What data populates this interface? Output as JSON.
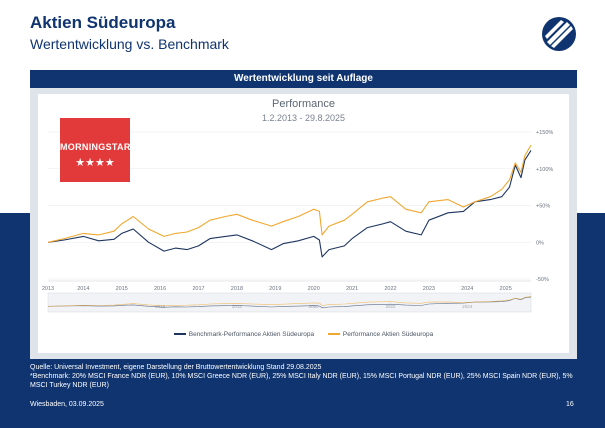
{
  "slide": {
    "title": "Aktien Südeuropa",
    "subtitle": "Wertentwicklung vs. Benchmark",
    "panel_title": "Wertentwicklung seit Auflage",
    "footnote_source": "Quelle: Universal Investment, eigene Darstellung der Bruttowertentwicklung Stand 29.08.2025",
    "footnote_benchmark": "*Benchmark: 20% MSCI France NDR (EUR), 10% MSCI Greece NDR (EUR), 25% MSCI Italy NDR (EUR), 15% MSCI Portugal NDR (EUR), 25% MSCI Spain NDR (EUR), 5% MSCI Turkey NDR (EUR)",
    "footer_place_date": "Wiesbaden, 03.09.2025",
    "page_number": "16",
    "logo_icon": "company-logo-icon",
    "colors": {
      "navy": "#0f3470",
      "fund": "#f0a830",
      "benchmark": "#1e3560",
      "morningstar_red": "#e23a3a"
    }
  },
  "morningstar": {
    "text": "MORNINGSTAR",
    "stars": "★★★★"
  },
  "chart_data": {
    "type": "line",
    "title": "Performance",
    "date_range": "1.2.2013 - 29.8.2025",
    "x_ticks": [
      "2013",
      "2014",
      "2015",
      "2016",
      "2017",
      "2018",
      "2019",
      "2020",
      "2021",
      "2022",
      "2023",
      "2024",
      "2025"
    ],
    "navigator_ticks": [
      "2016",
      "2018",
      "2020",
      "2022",
      "2024"
    ],
    "y_ticks": [
      "+150%",
      "+100%",
      "+50%",
      "0%",
      "-50%"
    ],
    "y_tick_values": [
      150,
      100,
      50,
      0,
      -50
    ],
    "ylim": [
      -50,
      150
    ],
    "xlim": [
      2013.08,
      2025.66
    ],
    "y_axis_position": "right",
    "legend_position": "bottom",
    "series": [
      {
        "name": "Benchmark-Performance Aktien Südeuropa",
        "color": "#1e3560",
        "x": [
          2013.08,
          2013.5,
          2014.0,
          2014.4,
          2014.8,
          2015.0,
          2015.3,
          2015.7,
          2016.1,
          2016.4,
          2016.7,
          2017.0,
          2017.3,
          2017.7,
          2018.0,
          2018.4,
          2018.9,
          2019.2,
          2019.6,
          2020.0,
          2020.15,
          2020.22,
          2020.4,
          2020.8,
          2021.0,
          2021.4,
          2021.8,
          2022.0,
          2022.4,
          2022.8,
          2023.0,
          2023.5,
          2023.9,
          2024.2,
          2024.6,
          2024.9,
          2025.1,
          2025.25,
          2025.4,
          2025.5,
          2025.66
        ],
        "values": [
          0,
          3,
          8,
          2,
          4,
          12,
          18,
          0,
          -12,
          -8,
          -10,
          -5,
          5,
          8,
          10,
          2,
          -10,
          -2,
          2,
          8,
          3,
          -20,
          -10,
          -5,
          5,
          20,
          25,
          28,
          15,
          10,
          30,
          40,
          42,
          55,
          58,
          62,
          75,
          105,
          88,
          112,
          125
        ]
      },
      {
        "name": "Performance Aktien Südeuropa",
        "color": "#f0a830",
        "x": [
          2013.08,
          2013.5,
          2014.0,
          2014.4,
          2014.8,
          2015.0,
          2015.3,
          2015.7,
          2016.1,
          2016.4,
          2016.7,
          2017.0,
          2017.3,
          2017.7,
          2018.0,
          2018.4,
          2018.9,
          2019.2,
          2019.6,
          2020.0,
          2020.15,
          2020.22,
          2020.4,
          2020.8,
          2021.0,
          2021.4,
          2021.8,
          2022.0,
          2022.4,
          2022.8,
          2023.0,
          2023.5,
          2023.9,
          2024.2,
          2024.6,
          2024.9,
          2025.1,
          2025.25,
          2025.4,
          2025.5,
          2025.66
        ],
        "values": [
          0,
          5,
          12,
          10,
          15,
          25,
          35,
          18,
          8,
          12,
          14,
          20,
          30,
          35,
          38,
          30,
          22,
          28,
          35,
          45,
          42,
          10,
          22,
          30,
          38,
          55,
          60,
          62,
          45,
          40,
          55,
          58,
          48,
          55,
          62,
          72,
          85,
          108,
          95,
          118,
          132
        ]
      }
    ]
  }
}
